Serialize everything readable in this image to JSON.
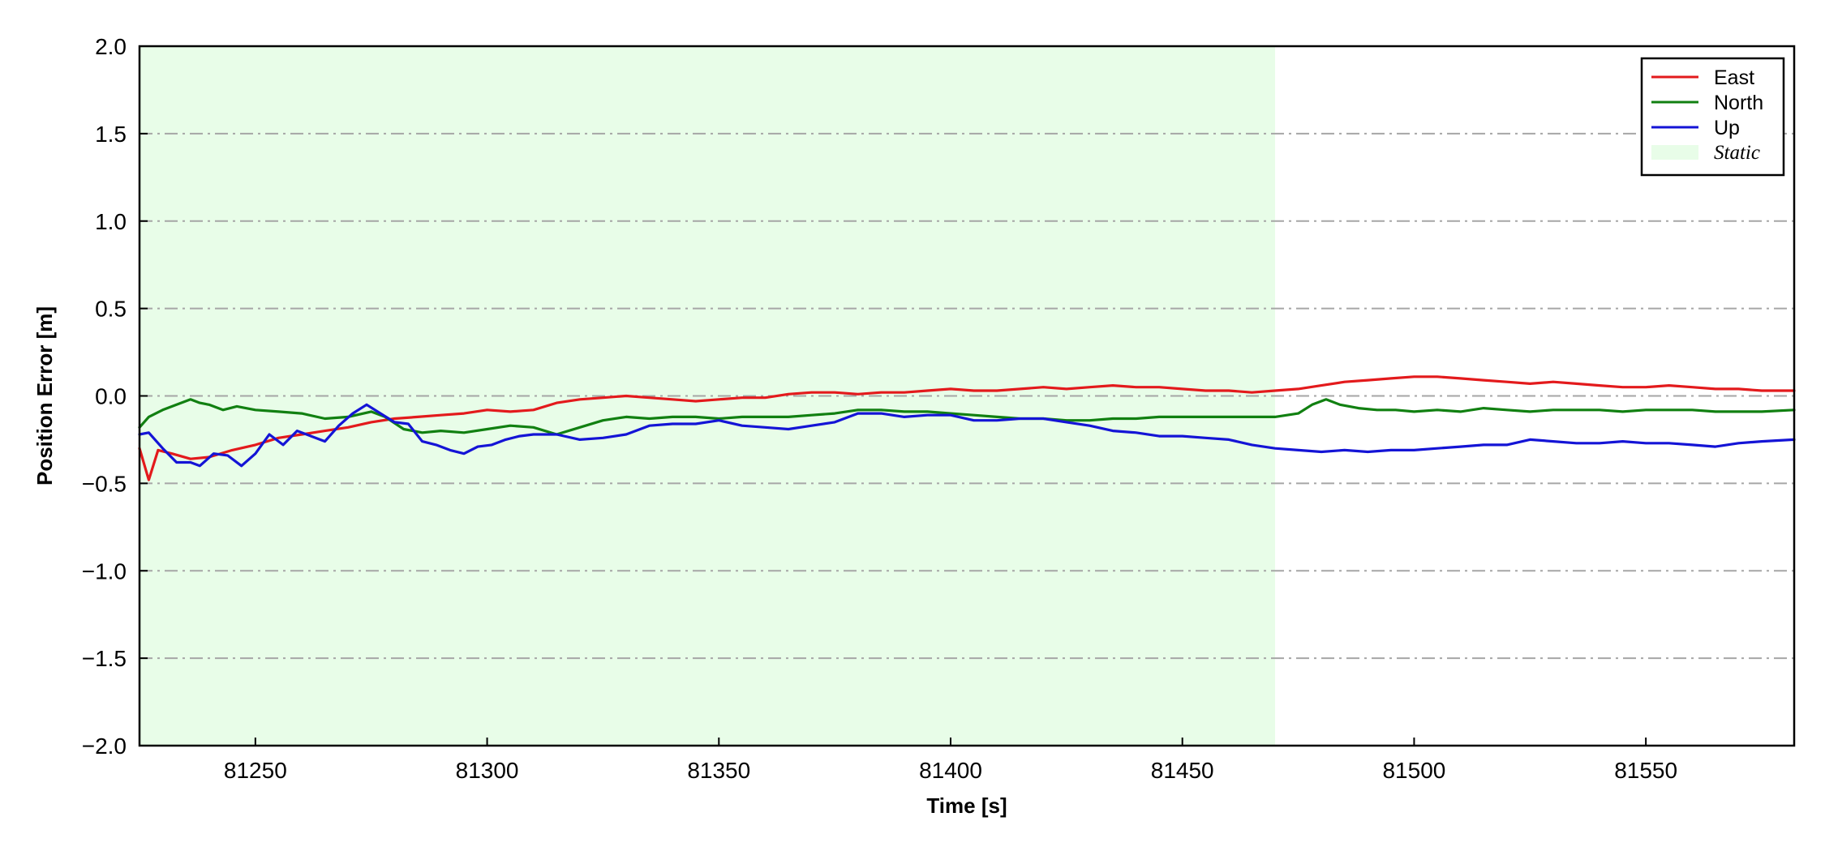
{
  "chart_data": {
    "type": "line",
    "title": "",
    "xlabel": "Time [s]",
    "ylabel": "Position Error [m]",
    "xlim": [
      81225,
      81582
    ],
    "ylim": [
      -2.0,
      2.0
    ],
    "xticks": [
      81250,
      81300,
      81350,
      81400,
      81450,
      81500,
      81550
    ],
    "xtick_labels": [
      "81250",
      "81300",
      "81350",
      "81400",
      "81450",
      "81500",
      "81550"
    ],
    "yticks": [
      -2.0,
      -1.5,
      -1.0,
      -0.5,
      0.0,
      0.5,
      1.0,
      1.5,
      2.0
    ],
    "ytick_labels": [
      "−2.0",
      "−1.5",
      "−1.0",
      "−0.5",
      "0.0",
      "0.5",
      "1.0",
      "1.5",
      "2.0"
    ],
    "grid": "horizontal dash-dot",
    "legend_position": "top-right",
    "static_region": {
      "label": "Static",
      "x_start": 81225,
      "x_end": 81470,
      "color": "#e8fde8"
    },
    "series": [
      {
        "name": "East",
        "color": "#e31a1c",
        "points": [
          [
            81225,
            -0.3
          ],
          [
            81227,
            -0.48
          ],
          [
            81229,
            -0.31
          ],
          [
            81232,
            -0.33
          ],
          [
            81236,
            -0.36
          ],
          [
            81240,
            -0.35
          ],
          [
            81245,
            -0.31
          ],
          [
            81250,
            -0.28
          ],
          [
            81255,
            -0.24
          ],
          [
            81260,
            -0.22
          ],
          [
            81265,
            -0.2
          ],
          [
            81270,
            -0.18
          ],
          [
            81275,
            -0.15
          ],
          [
            81280,
            -0.13
          ],
          [
            81285,
            -0.12
          ],
          [
            81290,
            -0.11
          ],
          [
            81295,
            -0.1
          ],
          [
            81300,
            -0.08
          ],
          [
            81305,
            -0.09
          ],
          [
            81310,
            -0.08
          ],
          [
            81315,
            -0.04
          ],
          [
            81320,
            -0.02
          ],
          [
            81325,
            -0.01
          ],
          [
            81330,
            0.0
          ],
          [
            81335,
            -0.01
          ],
          [
            81340,
            -0.02
          ],
          [
            81345,
            -0.03
          ],
          [
            81350,
            -0.02
          ],
          [
            81355,
            -0.01
          ],
          [
            81360,
            -0.01
          ],
          [
            81365,
            0.01
          ],
          [
            81370,
            0.02
          ],
          [
            81375,
            0.02
          ],
          [
            81380,
            0.01
          ],
          [
            81385,
            0.02
          ],
          [
            81390,
            0.02
          ],
          [
            81395,
            0.03
          ],
          [
            81400,
            0.04
          ],
          [
            81405,
            0.03
          ],
          [
            81410,
            0.03
          ],
          [
            81415,
            0.04
          ],
          [
            81420,
            0.05
          ],
          [
            81425,
            0.04
          ],
          [
            81430,
            0.05
          ],
          [
            81435,
            0.06
          ],
          [
            81440,
            0.05
          ],
          [
            81445,
            0.05
          ],
          [
            81450,
            0.04
          ],
          [
            81455,
            0.03
          ],
          [
            81460,
            0.03
          ],
          [
            81465,
            0.02
          ],
          [
            81470,
            0.03
          ],
          [
            81475,
            0.04
          ],
          [
            81480,
            0.06
          ],
          [
            81485,
            0.08
          ],
          [
            81490,
            0.09
          ],
          [
            81495,
            0.1
          ],
          [
            81500,
            0.11
          ],
          [
            81505,
            0.11
          ],
          [
            81510,
            0.1
          ],
          [
            81515,
            0.09
          ],
          [
            81520,
            0.08
          ],
          [
            81525,
            0.07
          ],
          [
            81530,
            0.08
          ],
          [
            81535,
            0.07
          ],
          [
            81540,
            0.06
          ],
          [
            81545,
            0.05
          ],
          [
            81550,
            0.05
          ],
          [
            81555,
            0.06
          ],
          [
            81560,
            0.05
          ],
          [
            81565,
            0.04
          ],
          [
            81570,
            0.04
          ],
          [
            81575,
            0.03
          ],
          [
            81582,
            0.03
          ]
        ]
      },
      {
        "name": "North",
        "color": "#118011",
        "points": [
          [
            81225,
            -0.18
          ],
          [
            81227,
            -0.12
          ],
          [
            81230,
            -0.08
          ],
          [
            81233,
            -0.05
          ],
          [
            81236,
            -0.02
          ],
          [
            81238,
            -0.04
          ],
          [
            81240,
            -0.05
          ],
          [
            81243,
            -0.08
          ],
          [
            81246,
            -0.06
          ],
          [
            81250,
            -0.08
          ],
          [
            81255,
            -0.09
          ],
          [
            81260,
            -0.1
          ],
          [
            81265,
            -0.13
          ],
          [
            81270,
            -0.12
          ],
          [
            81275,
            -0.09
          ],
          [
            81278,
            -0.12
          ],
          [
            81282,
            -0.19
          ],
          [
            81286,
            -0.21
          ],
          [
            81290,
            -0.2
          ],
          [
            81295,
            -0.21
          ],
          [
            81300,
            -0.19
          ],
          [
            81305,
            -0.17
          ],
          [
            81310,
            -0.18
          ],
          [
            81315,
            -0.22
          ],
          [
            81320,
            -0.18
          ],
          [
            81325,
            -0.14
          ],
          [
            81330,
            -0.12
          ],
          [
            81335,
            -0.13
          ],
          [
            81340,
            -0.12
          ],
          [
            81345,
            -0.12
          ],
          [
            81350,
            -0.13
          ],
          [
            81355,
            -0.12
          ],
          [
            81360,
            -0.12
          ],
          [
            81365,
            -0.12
          ],
          [
            81370,
            -0.11
          ],
          [
            81375,
            -0.1
          ],
          [
            81380,
            -0.08
          ],
          [
            81385,
            -0.08
          ],
          [
            81390,
            -0.09
          ],
          [
            81395,
            -0.09
          ],
          [
            81400,
            -0.1
          ],
          [
            81405,
            -0.11
          ],
          [
            81410,
            -0.12
          ],
          [
            81415,
            -0.13
          ],
          [
            81420,
            -0.13
          ],
          [
            81425,
            -0.14
          ],
          [
            81430,
            -0.14
          ],
          [
            81435,
            -0.13
          ],
          [
            81440,
            -0.13
          ],
          [
            81445,
            -0.12
          ],
          [
            81450,
            -0.12
          ],
          [
            81455,
            -0.12
          ],
          [
            81460,
            -0.12
          ],
          [
            81465,
            -0.12
          ],
          [
            81470,
            -0.12
          ],
          [
            81475,
            -0.1
          ],
          [
            81478,
            -0.05
          ],
          [
            81481,
            -0.02
          ],
          [
            81484,
            -0.05
          ],
          [
            81488,
            -0.07
          ],
          [
            81492,
            -0.08
          ],
          [
            81496,
            -0.08
          ],
          [
            81500,
            -0.09
          ],
          [
            81505,
            -0.08
          ],
          [
            81510,
            -0.09
          ],
          [
            81515,
            -0.07
          ],
          [
            81520,
            -0.08
          ],
          [
            81525,
            -0.09
          ],
          [
            81530,
            -0.08
          ],
          [
            81535,
            -0.08
          ],
          [
            81540,
            -0.08
          ],
          [
            81545,
            -0.09
          ],
          [
            81550,
            -0.08
          ],
          [
            81555,
            -0.08
          ],
          [
            81560,
            -0.08
          ],
          [
            81565,
            -0.09
          ],
          [
            81570,
            -0.09
          ],
          [
            81575,
            -0.09
          ],
          [
            81582,
            -0.08
          ]
        ]
      },
      {
        "name": "Up",
        "color": "#1414d6",
        "points": [
          [
            81225,
            -0.22
          ],
          [
            81227,
            -0.21
          ],
          [
            81230,
            -0.3
          ],
          [
            81233,
            -0.38
          ],
          [
            81236,
            -0.38
          ],
          [
            81238,
            -0.4
          ],
          [
            81241,
            -0.33
          ],
          [
            81244,
            -0.34
          ],
          [
            81247,
            -0.4
          ],
          [
            81250,
            -0.33
          ],
          [
            81253,
            -0.22
          ],
          [
            81256,
            -0.28
          ],
          [
            81259,
            -0.2
          ],
          [
            81262,
            -0.23
          ],
          [
            81265,
            -0.26
          ],
          [
            81268,
            -0.17
          ],
          [
            81271,
            -0.1
          ],
          [
            81274,
            -0.05
          ],
          [
            81277,
            -0.1
          ],
          [
            81280,
            -0.15
          ],
          [
            81283,
            -0.16
          ],
          [
            81286,
            -0.26
          ],
          [
            81289,
            -0.28
          ],
          [
            81292,
            -0.31
          ],
          [
            81295,
            -0.33
          ],
          [
            81298,
            -0.29
          ],
          [
            81301,
            -0.28
          ],
          [
            81304,
            -0.25
          ],
          [
            81307,
            -0.23
          ],
          [
            81310,
            -0.22
          ],
          [
            81315,
            -0.22
          ],
          [
            81320,
            -0.25
          ],
          [
            81325,
            -0.24
          ],
          [
            81330,
            -0.22
          ],
          [
            81335,
            -0.17
          ],
          [
            81340,
            -0.16
          ],
          [
            81345,
            -0.16
          ],
          [
            81350,
            -0.14
          ],
          [
            81355,
            -0.17
          ],
          [
            81360,
            -0.18
          ],
          [
            81365,
            -0.19
          ],
          [
            81370,
            -0.17
          ],
          [
            81375,
            -0.15
          ],
          [
            81380,
            -0.1
          ],
          [
            81385,
            -0.1
          ],
          [
            81390,
            -0.12
          ],
          [
            81395,
            -0.11
          ],
          [
            81400,
            -0.11
          ],
          [
            81405,
            -0.14
          ],
          [
            81410,
            -0.14
          ],
          [
            81415,
            -0.13
          ],
          [
            81420,
            -0.13
          ],
          [
            81425,
            -0.15
          ],
          [
            81430,
            -0.17
          ],
          [
            81435,
            -0.2
          ],
          [
            81440,
            -0.21
          ],
          [
            81445,
            -0.23
          ],
          [
            81450,
            -0.23
          ],
          [
            81455,
            -0.24
          ],
          [
            81460,
            -0.25
          ],
          [
            81465,
            -0.28
          ],
          [
            81470,
            -0.3
          ],
          [
            81475,
            -0.31
          ],
          [
            81480,
            -0.32
          ],
          [
            81485,
            -0.31
          ],
          [
            81490,
            -0.32
          ],
          [
            81495,
            -0.31
          ],
          [
            81500,
            -0.31
          ],
          [
            81505,
            -0.3
          ],
          [
            81510,
            -0.29
          ],
          [
            81515,
            -0.28
          ],
          [
            81520,
            -0.28
          ],
          [
            81525,
            -0.25
          ],
          [
            81530,
            -0.26
          ],
          [
            81535,
            -0.27
          ],
          [
            81540,
            -0.27
          ],
          [
            81545,
            -0.26
          ],
          [
            81550,
            -0.27
          ],
          [
            81555,
            -0.27
          ],
          [
            81560,
            -0.28
          ],
          [
            81565,
            -0.29
          ],
          [
            81570,
            -0.27
          ],
          [
            81575,
            -0.26
          ],
          [
            81582,
            -0.25
          ]
        ]
      }
    ]
  }
}
